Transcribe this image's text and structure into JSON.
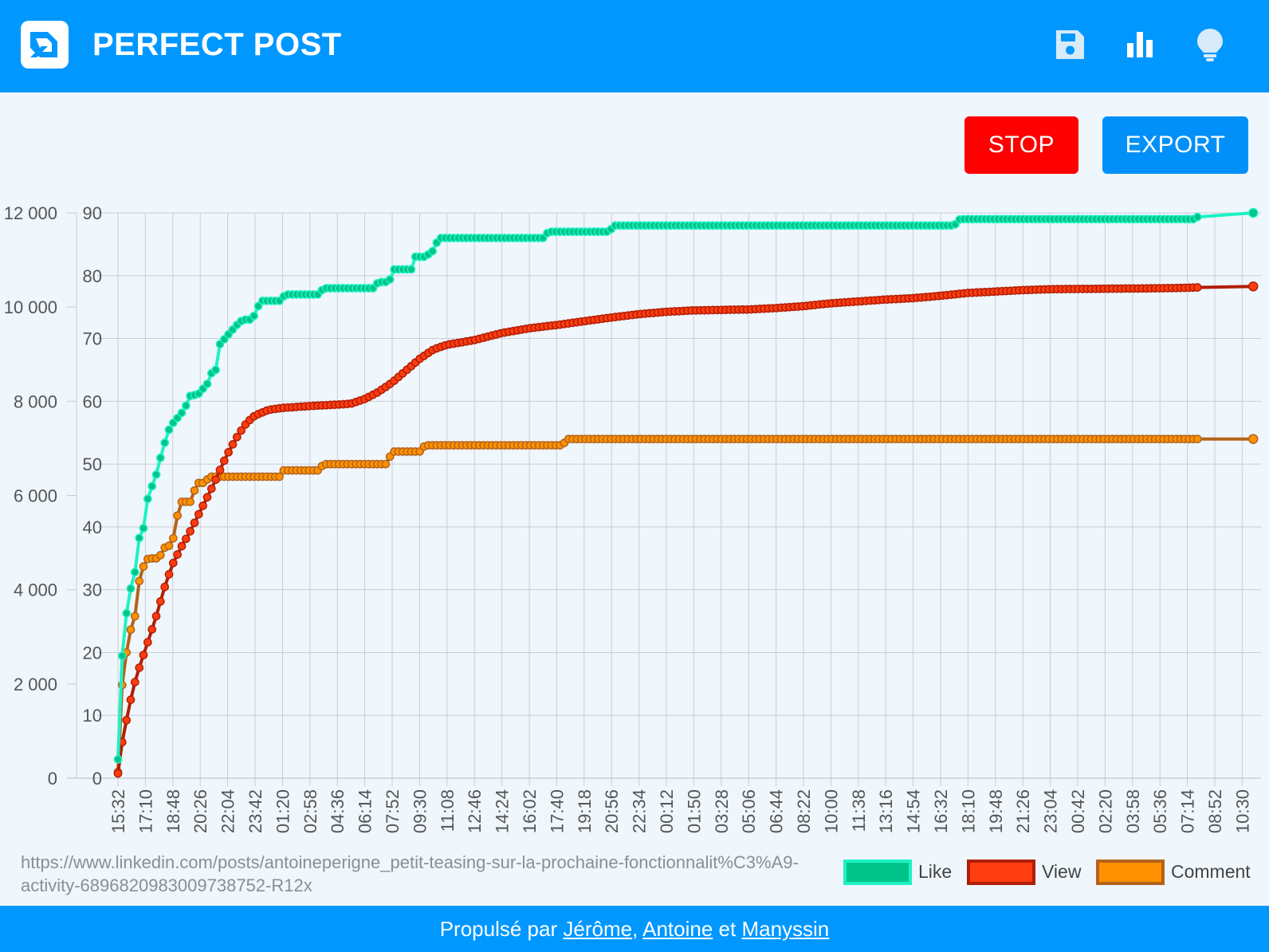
{
  "header": {
    "app_title": "PERFECT POST",
    "icons": [
      "logo-icon",
      "save-icon",
      "bar-chart-icon",
      "lightbulb-icon"
    ]
  },
  "toolbar": {
    "stop_label": "STOP",
    "export_label": "EXPORT"
  },
  "colors": {
    "header_bg": "#0097ff",
    "stop_bg": "#ff0000",
    "export_bg": "#0090f8",
    "like_line": "#1ef2c4",
    "like_point": "#00c487",
    "view_line": "#b01e05",
    "view_point": "#ff3d10",
    "comment_line": "#b3631c",
    "comment_point": "#ff9100"
  },
  "url": "https://www.linkedin.com/posts/antoineperigne_petit-teasing-sur-la-prochaine-fonctionnalit%C3%A9-activity-6896820983009738752-R12x",
  "legend": [
    {
      "label": "Like"
    },
    {
      "label": "View"
    },
    {
      "label": "Comment"
    }
  ],
  "footer": {
    "prefix": "Propulsé par",
    "sep1": ",",
    "sep2": "et",
    "links": [
      "Jérôme",
      "Antoine",
      "Manyssin"
    ]
  },
  "chart_data": {
    "type": "line",
    "x_ticks": [
      "15:32",
      "17:10",
      "18:48",
      "20:26",
      "22:04",
      "23:42",
      "01:20",
      "02:58",
      "04:36",
      "06:14",
      "07:52",
      "09:30",
      "11:08",
      "12:46",
      "14:24",
      "16:02",
      "17:40",
      "19:18",
      "20:56",
      "22:34",
      "00:12",
      "01:50",
      "03:28",
      "05:06",
      "06:44",
      "08:22",
      "10:00",
      "11:38",
      "13:16",
      "14:54",
      "16:32",
      "18:10",
      "19:48",
      "21:26",
      "23:04",
      "00:42",
      "02:20",
      "03:58",
      "05:36",
      "07:14",
      "08:52",
      "10:30"
    ],
    "x_range": [
      0,
      41.4
    ],
    "y_left": {
      "range": [
        0,
        12000
      ],
      "ticks": [
        "0",
        "2 000",
        "4 000",
        "6 000",
        "8 000",
        "10 000",
        "12 000"
      ]
    },
    "y_right": {
      "range": [
        0,
        90
      ],
      "ticks": [
        "0",
        "10",
        "20",
        "30",
        "40",
        "50",
        "60",
        "70",
        "80",
        "90"
      ]
    },
    "grid": true,
    "legend_position": "bottom-right",
    "series": [
      {
        "name": "Like",
        "axis": "right",
        "points": [
          [
            0,
            3
          ],
          [
            0.1,
            17
          ],
          [
            0.3,
            26
          ],
          [
            0.45,
            30
          ],
          [
            0.6,
            32
          ],
          [
            0.75,
            38
          ],
          [
            0.95,
            40
          ],
          [
            1.05,
            44
          ],
          [
            1.2,
            46
          ],
          [
            1.45,
            49
          ],
          [
            1.6,
            52
          ],
          [
            1.75,
            54
          ],
          [
            1.9,
            56
          ],
          [
            2.1,
            57
          ],
          [
            2.3,
            58
          ],
          [
            2.45,
            59
          ],
          [
            2.65,
            61
          ],
          [
            2.9,
            61
          ],
          [
            3.1,
            62
          ],
          [
            3.3,
            63
          ],
          [
            3.45,
            65
          ],
          [
            3.65,
            65
          ],
          [
            3.7,
            69
          ],
          [
            3.9,
            70
          ],
          [
            4.1,
            71
          ],
          [
            4.3,
            72
          ],
          [
            4.55,
            73
          ],
          [
            4.9,
            73
          ],
          [
            5.1,
            75
          ],
          [
            5.2,
            76
          ],
          [
            5.9,
            76
          ],
          [
            6.1,
            77
          ],
          [
            7.3,
            77
          ],
          [
            7.5,
            78
          ],
          [
            9.3,
            78
          ],
          [
            9.5,
            79
          ],
          [
            9.9,
            79
          ],
          [
            10,
            81
          ],
          [
            10.7,
            81
          ],
          [
            10.8,
            83
          ],
          [
            11.2,
            83
          ],
          [
            11.5,
            84
          ],
          [
            11.7,
            86
          ],
          [
            15.5,
            86
          ],
          [
            15.7,
            87
          ],
          [
            17.9,
            87
          ],
          [
            18.1,
            88
          ],
          [
            30.5,
            88
          ],
          [
            30.7,
            89
          ],
          [
            39.3,
            89
          ],
          [
            39.5,
            90
          ],
          [
            41.4,
            90
          ]
        ]
      },
      {
        "name": "View",
        "axis": "left",
        "points": [
          [
            0,
            100
          ],
          [
            0.15,
            750
          ],
          [
            0.35,
            1350
          ],
          [
            0.55,
            1900
          ],
          [
            0.75,
            2300
          ],
          [
            0.95,
            2650
          ],
          [
            1.15,
            3000
          ],
          [
            1.35,
            3350
          ],
          [
            1.55,
            3750
          ],
          [
            1.75,
            4150
          ],
          [
            2.0,
            4550
          ],
          [
            2.3,
            4900
          ],
          [
            2.6,
            5200
          ],
          [
            2.9,
            5550
          ],
          [
            3.2,
            5900
          ],
          [
            3.5,
            6250
          ],
          [
            3.8,
            6650
          ],
          [
            4.1,
            7000
          ],
          [
            4.4,
            7300
          ],
          [
            4.7,
            7550
          ],
          [
            5.0,
            7700
          ],
          [
            5.5,
            7820
          ],
          [
            6,
            7860
          ],
          [
            7,
            7900
          ],
          [
            8,
            7930
          ],
          [
            8.5,
            7950
          ],
          [
            9,
            8050
          ],
          [
            9.5,
            8200
          ],
          [
            10,
            8400
          ],
          [
            10.5,
            8650
          ],
          [
            11,
            8900
          ],
          [
            11.5,
            9100
          ],
          [
            12,
            9200
          ],
          [
            13,
            9300
          ],
          [
            14,
            9450
          ],
          [
            15,
            9550
          ],
          [
            16,
            9620
          ],
          [
            17,
            9700
          ],
          [
            18,
            9780
          ],
          [
            19,
            9850
          ],
          [
            20,
            9900
          ],
          [
            21,
            9930
          ],
          [
            22,
            9940
          ],
          [
            23,
            9950
          ],
          [
            24,
            9980
          ],
          [
            25,
            10020
          ],
          [
            26,
            10080
          ],
          [
            27,
            10120
          ],
          [
            28,
            10160
          ],
          [
            29,
            10190
          ],
          [
            30,
            10240
          ],
          [
            31,
            10300
          ],
          [
            32,
            10330
          ],
          [
            33,
            10360
          ],
          [
            34,
            10380
          ],
          [
            35,
            10385
          ],
          [
            36,
            10390
          ],
          [
            37,
            10395
          ],
          [
            38,
            10400
          ],
          [
            39,
            10410
          ],
          [
            39.5,
            10420
          ],
          [
            41.4,
            10440
          ]
        ]
      },
      {
        "name": "Comment",
        "axis": "right",
        "points": [
          [
            0,
            1
          ],
          [
            0.1,
            13
          ],
          [
            0.25,
            18
          ],
          [
            0.4,
            23
          ],
          [
            0.6,
            25
          ],
          [
            0.75,
            31
          ],
          [
            0.95,
            34
          ],
          [
            1.1,
            35
          ],
          [
            1.5,
            35
          ],
          [
            1.6,
            36
          ],
          [
            1.75,
            37
          ],
          [
            2.0,
            37
          ],
          [
            2.05,
            41
          ],
          [
            2.2,
            42
          ],
          [
            2.3,
            44
          ],
          [
            2.7,
            44
          ],
          [
            2.8,
            46
          ],
          [
            2.9,
            47
          ],
          [
            3.2,
            47
          ],
          [
            3.3,
            48
          ],
          [
            5.9,
            48
          ],
          [
            6.0,
            49
          ],
          [
            7.3,
            49
          ],
          [
            7.5,
            50
          ],
          [
            9.8,
            50
          ],
          [
            10.0,
            52
          ],
          [
            11.0,
            52
          ],
          [
            11.2,
            53
          ],
          [
            16.2,
            53
          ],
          [
            16.4,
            54
          ],
          [
            39.5,
            54
          ],
          [
            41.4,
            54
          ]
        ]
      }
    ]
  }
}
